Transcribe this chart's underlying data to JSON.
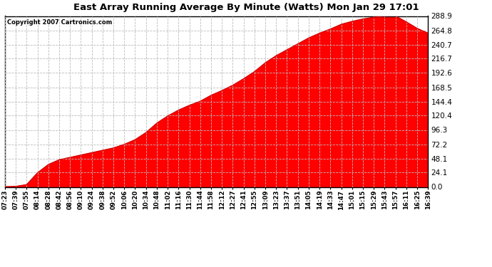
{
  "title": "East Array Running Average By Minute (Watts) Mon Jan 29 17:01",
  "copyright": "Copyright 2007 Cartronics.com",
  "background_color": "#ffffff",
  "plot_bg_color": "#ffffff",
  "fill_color": "#ff0000",
  "line_color": "#cc0000",
  "grid_color": "#bbbbbb",
  "y_ticks": [
    0.0,
    24.1,
    48.1,
    72.2,
    96.3,
    120.4,
    144.4,
    168.5,
    192.6,
    216.7,
    240.7,
    264.8,
    288.9
  ],
  "x_labels": [
    "07:23",
    "07:39",
    "07:55",
    "08:14",
    "08:28",
    "08:42",
    "08:56",
    "09:10",
    "09:24",
    "09:38",
    "09:52",
    "10:06",
    "10:20",
    "10:34",
    "10:48",
    "11:02",
    "11:16",
    "11:30",
    "11:44",
    "11:58",
    "12:12",
    "12:27",
    "12:41",
    "12:55",
    "13:09",
    "13:23",
    "13:37",
    "13:51",
    "14:05",
    "14:19",
    "14:33",
    "14:47",
    "15:01",
    "15:15",
    "15:29",
    "15:43",
    "15:57",
    "16:11",
    "16:25",
    "16:39"
  ],
  "y_values": [
    0.5,
    1.0,
    4.0,
    24.0,
    38.0,
    46.0,
    50.0,
    54.0,
    58.0,
    62.0,
    66.0,
    72.0,
    80.0,
    92.0,
    108.0,
    120.0,
    130.0,
    138.0,
    145.0,
    155.0,
    163.0,
    172.0,
    183.0,
    195.0,
    210.0,
    222.0,
    232.0,
    242.0,
    252.0,
    260.0,
    267.0,
    275.0,
    280.0,
    284.0,
    287.0,
    288.5,
    288.9,
    279.0,
    268.0,
    260.0
  ]
}
